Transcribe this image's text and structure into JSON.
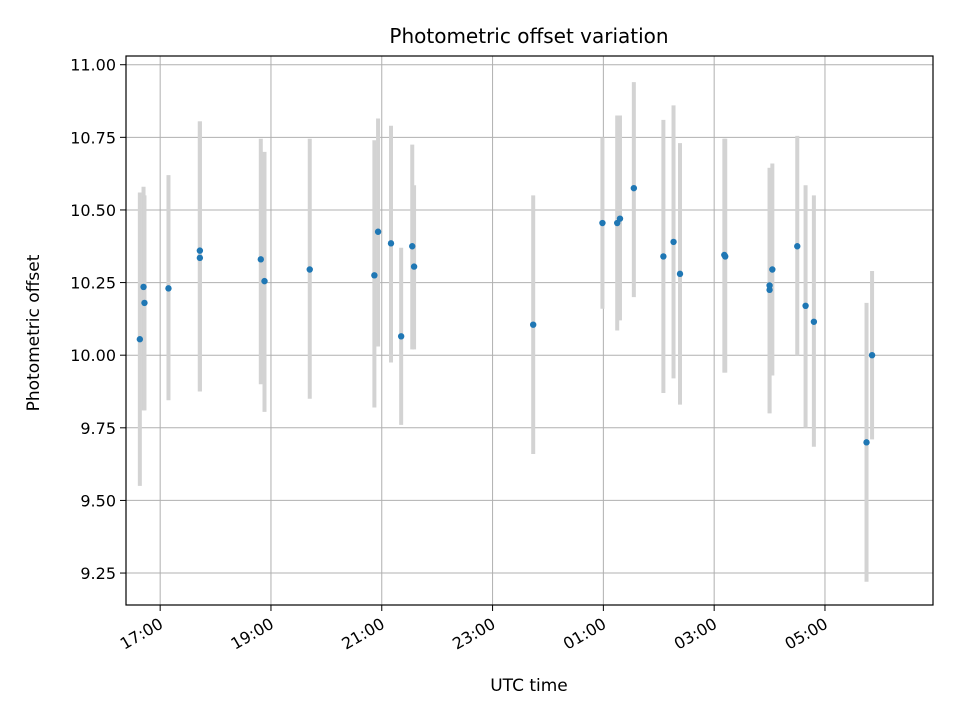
{
  "chart_data": {
    "type": "scatter",
    "title": "Photometric offset variation",
    "xlabel": "UTC time",
    "ylabel": "Photometric offset",
    "x_axis_kind": "time",
    "xlim": [
      "16:23",
      "06:57"
    ],
    "ylim": [
      9.14,
      11.03
    ],
    "yticks": [
      9.25,
      9.5,
      9.75,
      10.0,
      10.25,
      10.5,
      10.75,
      11.0
    ],
    "xticks": [
      "17:00",
      "19:00",
      "21:00",
      "23:00",
      "01:00",
      "03:00",
      "05:00"
    ],
    "grid": true,
    "marker_color": "#1f77b4",
    "errorbar_color": "#d3d3d3",
    "points": [
      {
        "x": "16:38",
        "y": 10.055,
        "y_low": 9.55,
        "y_high": 10.56
      },
      {
        "x": "16:42",
        "y": 10.235,
        "y_low": 9.81,
        "y_high": 10.58
      },
      {
        "x": "16:43",
        "y": 10.18,
        "y_low": 9.81,
        "y_high": 10.55
      },
      {
        "x": "17:09",
        "y": 10.23,
        "y_low": 9.845,
        "y_high": 10.62
      },
      {
        "x": "17:43",
        "y": 10.36,
        "y_low": 9.875,
        "y_high": 10.805
      },
      {
        "x": "17:43",
        "y": 10.335,
        "y_low": 9.875,
        "y_high": 10.805
      },
      {
        "x": "18:49",
        "y": 10.33,
        "y_low": 9.9,
        "y_high": 10.745
      },
      {
        "x": "18:53",
        "y": 10.255,
        "y_low": 9.805,
        "y_high": 10.7
      },
      {
        "x": "19:42",
        "y": 10.295,
        "y_low": 9.85,
        "y_high": 10.745
      },
      {
        "x": "20:52",
        "y": 10.275,
        "y_low": 9.82,
        "y_high": 10.74
      },
      {
        "x": "20:56",
        "y": 10.425,
        "y_low": 10.03,
        "y_high": 10.815
      },
      {
        "x": "21:10",
        "y": 10.385,
        "y_low": 9.975,
        "y_high": 10.79
      },
      {
        "x": "21:21",
        "y": 10.065,
        "y_low": 9.76,
        "y_high": 10.37
      },
      {
        "x": "21:33",
        "y": 10.375,
        "y_low": 10.02,
        "y_high": 10.725
      },
      {
        "x": "21:35",
        "y": 10.305,
        "y_low": 10.02,
        "y_high": 10.585
      },
      {
        "x": "23:44",
        "y": 10.105,
        "y_low": 9.66,
        "y_high": 10.55
      },
      {
        "x": "00:59",
        "y": 10.455,
        "y_low": 10.16,
        "y_high": 10.75
      },
      {
        "x": "01:15",
        "y": 10.455,
        "y_low": 10.085,
        "y_high": 10.825
      },
      {
        "x": "01:18",
        "y": 10.47,
        "y_low": 10.12,
        "y_high": 10.825
      },
      {
        "x": "01:33",
        "y": 10.575,
        "y_low": 10.2,
        "y_high": 10.94
      },
      {
        "x": "02:05",
        "y": 10.34,
        "y_low": 9.87,
        "y_high": 10.81
      },
      {
        "x": "02:16",
        "y": 10.39,
        "y_low": 9.92,
        "y_high": 10.86
      },
      {
        "x": "02:23",
        "y": 10.28,
        "y_low": 9.83,
        "y_high": 10.73
      },
      {
        "x": "03:11",
        "y": 10.345,
        "y_low": 9.94,
        "y_high": 10.745
      },
      {
        "x": "03:12",
        "y": 10.34,
        "y_low": 9.94,
        "y_high": 10.745
      },
      {
        "x": "04:00",
        "y": 10.24,
        "y_low": 9.8,
        "y_high": 10.645
      },
      {
        "x": "04:00",
        "y": 10.225,
        "y_low": 9.8,
        "y_high": 10.645
      },
      {
        "x": "04:03",
        "y": 10.295,
        "y_low": 9.93,
        "y_high": 10.66
      },
      {
        "x": "04:30",
        "y": 10.375,
        "y_low": 10.0,
        "y_high": 10.755
      },
      {
        "x": "04:39",
        "y": 10.17,
        "y_low": 9.75,
        "y_high": 10.585
      },
      {
        "x": "04:48",
        "y": 10.115,
        "y_low": 9.685,
        "y_high": 10.55
      },
      {
        "x": "05:45",
        "y": 9.7,
        "y_low": 9.22,
        "y_high": 10.18
      },
      {
        "x": "05:51",
        "y": 10.0,
        "y_low": 9.71,
        "y_high": 10.29
      }
    ]
  }
}
